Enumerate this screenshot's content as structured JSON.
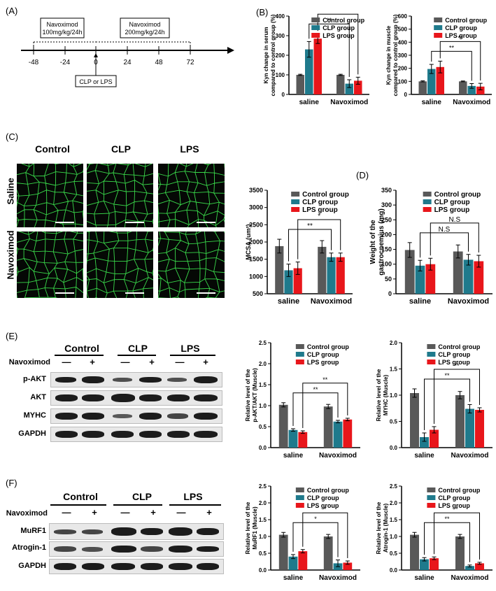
{
  "panels": {
    "A": "(A)",
    "B": "(B)",
    "C": "(C)",
    "D": "(D)",
    "E": "(E)",
    "F": "(F)"
  },
  "timeline": {
    "ticks": [
      "-48",
      "-24",
      "0",
      "24",
      "48",
      "72"
    ],
    "box1": [
      "Navoximod",
      "100mg/kg/24h"
    ],
    "box2": [
      "Navoximod",
      "200mg/kg/24h"
    ],
    "box3": "CLP or LPS"
  },
  "legend": [
    "Control group",
    "CLP group",
    "LPS group"
  ],
  "colors": {
    "control": "#595959",
    "clp": "#1f7a8c",
    "lps": "#e8161b"
  },
  "micro": {
    "columns": [
      "Control",
      "CLP",
      "LPS"
    ],
    "rows": [
      "Saline",
      "Navoximod"
    ]
  },
  "blots_E": {
    "groups": [
      "Control",
      "CLP",
      "LPS"
    ],
    "treatment_label": "Navoximod",
    "signs": [
      "—",
      "+",
      "—",
      "+",
      "—",
      "+"
    ],
    "rows": [
      "p-AKT",
      "AKT",
      "MYHC",
      "GAPDH"
    ]
  },
  "blots_F": {
    "groups": [
      "Control",
      "CLP",
      "LPS"
    ],
    "treatment_label": "Navoximod",
    "signs": [
      "—",
      "+",
      "—",
      "+",
      "—",
      "+"
    ],
    "rows": [
      "MuRF1",
      "Atrogin-1",
      "GAPDH"
    ]
  },
  "chart_data": [
    {
      "id": "B1",
      "type": "bar",
      "categories": [
        "saline",
        "Navoximod"
      ],
      "ylabel": "Kyn change in serum\ncompared to control group (%)",
      "ylim": [
        0,
        400
      ],
      "yticks": [
        0,
        100,
        200,
        300,
        400
      ],
      "series": [
        {
          "name": "Control group",
          "values": [
            100,
            100
          ],
          "errors": [
            3,
            3
          ]
        },
        {
          "name": "CLP group",
          "values": [
            230,
            55
          ],
          "errors": [
            40,
            20
          ]
        },
        {
          "name": "LPS group",
          "values": [
            285,
            70
          ],
          "errors": [
            25,
            18
          ]
        }
      ],
      "annotations": [
        "**",
        "**"
      ]
    },
    {
      "id": "B2",
      "type": "bar",
      "categories": [
        "saline",
        "Navoximod"
      ],
      "ylabel": "Kyn change in muscle\ncompared to control group (%)",
      "ylim": [
        0,
        600
      ],
      "yticks": [
        0,
        100,
        200,
        300,
        400,
        500,
        600
      ],
      "series": [
        {
          "name": "Control group",
          "values": [
            100,
            100
          ],
          "errors": [
            4,
            3
          ]
        },
        {
          "name": "CLP group",
          "values": [
            195,
            65
          ],
          "errors": [
            35,
            18
          ]
        },
        {
          "name": "LPS group",
          "values": [
            210,
            60
          ],
          "errors": [
            45,
            25
          ]
        }
      ],
      "annotations": [
        "**",
        "**"
      ]
    },
    {
      "id": "C",
      "type": "bar",
      "categories": [
        "saline",
        "Navoximod"
      ],
      "ylabel": "MCSA (um²)",
      "ylim": [
        500,
        3500
      ],
      "yticks": [
        500,
        1000,
        1500,
        2000,
        2500,
        3000,
        3500
      ],
      "series": [
        {
          "name": "Control group",
          "values": [
            1880,
            1860
          ],
          "errors": [
            200,
            180
          ]
        },
        {
          "name": "CLP group",
          "values": [
            1180,
            1560
          ],
          "errors": [
            180,
            120
          ]
        },
        {
          "name": "LPS group",
          "values": [
            1240,
            1560
          ],
          "errors": [
            180,
            120
          ]
        }
      ],
      "annotations": [
        "**",
        "*"
      ]
    },
    {
      "id": "D",
      "type": "bar",
      "categories": [
        "saline",
        "Navoximod"
      ],
      "ylabel": "Weight of the\ngastrocnemius (mg)",
      "ylim": [
        0,
        350
      ],
      "yticks": [
        0,
        50,
        100,
        150,
        200,
        250,
        300,
        350
      ],
      "series": [
        {
          "name": "Control group",
          "values": [
            148,
            143
          ],
          "errors": [
            25,
            22
          ]
        },
        {
          "name": "CLP group",
          "values": [
            95,
            115
          ],
          "errors": [
            18,
            18
          ]
        },
        {
          "name": "LPS group",
          "values": [
            100,
            110
          ],
          "errors": [
            20,
            20
          ]
        }
      ],
      "annotations": [
        "N.S",
        "N.S"
      ]
    },
    {
      "id": "E1",
      "type": "bar",
      "categories": [
        "saline",
        "Navoximod"
      ],
      "ylabel": "Relative level of the\np-AKT/AKT (Muscle)",
      "ylim": [
        0,
        2.5
      ],
      "yticks": [
        0.0,
        0.5,
        1.0,
        1.5,
        2.0,
        2.5
      ],
      "series": [
        {
          "name": "Control group",
          "values": [
            1.02,
            0.98
          ],
          "errors": [
            0.05,
            0.05
          ]
        },
        {
          "name": "CLP group",
          "values": [
            0.42,
            0.62
          ],
          "errors": [
            0.03,
            0.03
          ]
        },
        {
          "name": "LPS group",
          "values": [
            0.37,
            0.67
          ],
          "errors": [
            0.03,
            0.03
          ]
        }
      ],
      "annotations": [
        "**",
        "**"
      ]
    },
    {
      "id": "E2",
      "type": "bar",
      "categories": [
        "saline",
        "Navoximod"
      ],
      "ylabel": "Relative level of the\nMYHC (Muscle)",
      "ylim": [
        0,
        2.0
      ],
      "yticks": [
        0.0,
        0.5,
        1.0,
        1.5,
        2.0
      ],
      "series": [
        {
          "name": "Control group",
          "values": [
            1.04,
            1.0
          ],
          "errors": [
            0.08,
            0.07
          ]
        },
        {
          "name": "CLP group",
          "values": [
            0.2,
            0.74
          ],
          "errors": [
            0.08,
            0.08
          ]
        },
        {
          "name": "LPS group",
          "values": [
            0.34,
            0.72
          ],
          "errors": [
            0.06,
            0.04
          ]
        }
      ],
      "annotations": [
        "**",
        "**"
      ]
    },
    {
      "id": "F1",
      "type": "bar",
      "categories": [
        "saline",
        "Navoximod"
      ],
      "ylabel": "Relative level of the\nMuRF1 (Muscle)",
      "ylim": [
        0,
        2.5
      ],
      "yticks": [
        0.0,
        0.5,
        1.0,
        1.5,
        2.0,
        2.5
      ],
      "series": [
        {
          "name": "Control group",
          "values": [
            1.05,
            1.0
          ],
          "errors": [
            0.07,
            0.06
          ]
        },
        {
          "name": "CLP group",
          "values": [
            0.4,
            0.2
          ],
          "errors": [
            0.06,
            0.1
          ]
        },
        {
          "name": "LPS group",
          "values": [
            0.56,
            0.22
          ],
          "errors": [
            0.05,
            0.05
          ]
        }
      ],
      "annotations": [
        "*",
        "*"
      ]
    },
    {
      "id": "F2",
      "type": "bar",
      "categories": [
        "saline",
        "Navoximod"
      ],
      "ylabel": "Relative level of the\nAtrogin-1 (Muscle)",
      "ylim": [
        0,
        2.5
      ],
      "yticks": [
        0.0,
        0.5,
        1.0,
        1.5,
        2.0,
        2.5
      ],
      "series": [
        {
          "name": "Control group",
          "values": [
            1.05,
            1.0
          ],
          "errors": [
            0.07,
            0.06
          ]
        },
        {
          "name": "CLP group",
          "values": [
            0.32,
            0.12
          ],
          "errors": [
            0.05,
            0.03
          ]
        },
        {
          "name": "LPS group",
          "values": [
            0.35,
            0.2
          ],
          "errors": [
            0.04,
            0.03
          ]
        }
      ],
      "annotations": [
        "**",
        "*"
      ]
    }
  ]
}
